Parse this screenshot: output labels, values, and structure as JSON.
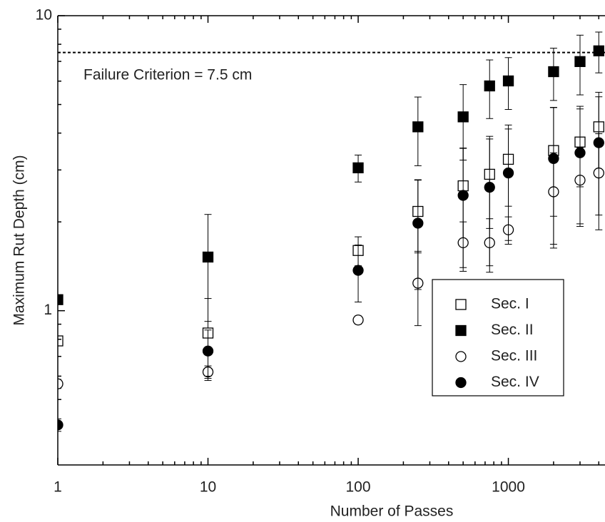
{
  "chart_data": {
    "type": "scatter",
    "xlabel": "Number of Passes",
    "ylabel": "Maximum Rut Depth (cm)",
    "x": [
      1,
      10,
      100,
      250,
      500,
      750,
      1000,
      2000,
      3000,
      4000
    ],
    "series": [
      {
        "name": "Sec. I",
        "marker": "square",
        "filled": false,
        "color": "#000000",
        "values": [
          0.79,
          0.84,
          1.6,
          2.17,
          2.65,
          2.9,
          3.26,
          3.49,
          3.73,
          4.2
        ],
        "errors": [
          0.03,
          0.26,
          0.18,
          0.6,
          0.9,
          1.0,
          1.0,
          1.4,
          1.1,
          1.3
        ]
      },
      {
        "name": "Sec. II",
        "marker": "square",
        "filled": true,
        "color": "#000000",
        "values": [
          1.09,
          1.52,
          3.05,
          4.2,
          4.54,
          5.78,
          6.01,
          6.46,
          6.99,
          7.6
        ],
        "errors": [
          0.03,
          0.6,
          0.32,
          1.1,
          1.3,
          1.3,
          1.2,
          1.3,
          1.6,
          1.2
        ]
      },
      {
        "name": "Sec. III",
        "marker": "circle",
        "filled": false,
        "color": "#000000",
        "values": [
          0.565,
          0.62,
          0.93,
          1.24,
          1.7,
          1.7,
          1.88,
          2.53,
          2.77,
          2.93
        ],
        "errors": [
          0.02,
          0.03,
          0.03,
          0.35,
          0.3,
          0.35,
          0.2,
          0.9,
          0.8,
          1.05
        ]
      },
      {
        "name": "Sec. IV",
        "marker": "circle",
        "filled": true,
        "color": "#000000",
        "values": [
          0.41,
          0.73,
          1.37,
          1.98,
          2.46,
          2.62,
          2.93,
          3.28,
          3.43,
          3.71
        ],
        "errors": [
          0.02,
          0.13,
          0.3,
          0.8,
          1.1,
          1.2,
          1.2,
          1.6,
          1.5,
          1.6
        ]
      }
    ],
    "xlim": [
      1,
      4400
    ],
    "ylim": [
      0.3,
      10
    ],
    "xticks": [
      1,
      10,
      100,
      1000
    ],
    "yticks": [
      1,
      10
    ],
    "xscale": "log",
    "yscale": "log",
    "threshold": 7.5,
    "annotation": "Failure Criterion = 7.5 cm",
    "legend": "lower right"
  }
}
